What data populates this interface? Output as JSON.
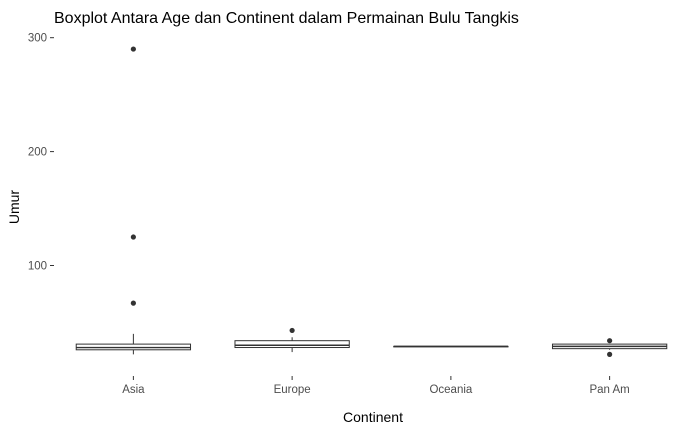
{
  "chart_data": {
    "type": "boxplot",
    "title": "Boxplot Antara Age dan Continent dalam Permainan Bulu Tangkis",
    "xlabel": "Continent",
    "ylabel": "Umur",
    "categories": [
      "Asia",
      "Europe",
      "Oceania",
      "Pan Am"
    ],
    "ylim": [
      3,
      305
    ],
    "yticks": [
      100,
      200,
      300
    ],
    "grid": false,
    "legend": "none",
    "boxes": [
      {
        "category": "Asia",
        "lower_whisker": 22,
        "q1": 26,
        "median": 28,
        "q3": 31,
        "upper_whisker": 40,
        "outliers": [
          290,
          125,
          67
        ]
      },
      {
        "category": "Europe",
        "lower_whisker": 24,
        "q1": 28,
        "median": 30,
        "q3": 34,
        "upper_whisker": 37,
        "outliers": [
          43
        ]
      },
      {
        "category": "Oceania",
        "lower_whisker": 29,
        "q1": 29,
        "median": 29,
        "q3": 29,
        "upper_whisker": 29,
        "outliers": []
      },
      {
        "category": "Pan Am",
        "lower_whisker": 26,
        "q1": 27,
        "median": 29,
        "q3": 31,
        "upper_whisker": 31,
        "outliers": [
          34,
          22
        ]
      }
    ]
  }
}
